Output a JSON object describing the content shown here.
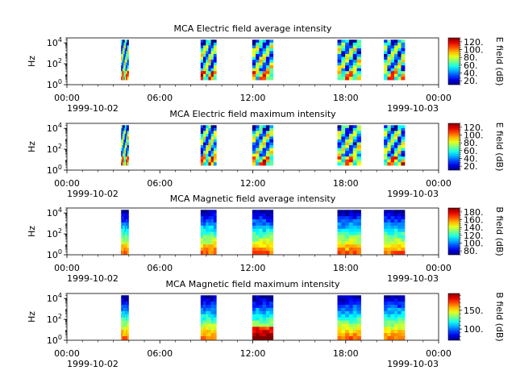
{
  "chart_data": [
    {
      "type": "heatmap",
      "title": "MCA  Electric field average intensity",
      "ylabel": "Hz",
      "colorbar_label": "E field (dB)",
      "colorbar_range": [
        10,
        130
      ],
      "colorbar_ticks": [
        "20.",
        "40.",
        "60.",
        "80.",
        "100.",
        "120."
      ],
      "y_scale": "log",
      "ylim": [
        1,
        30000
      ],
      "y_ticks": [
        {
          "base": "10",
          "exp": "0"
        },
        {
          "base": "10",
          "exp": "2"
        },
        {
          "base": "10",
          "exp": "4"
        }
      ],
      "x_ticks": [
        "00:00",
        "06:00",
        "12:00",
        "18:00",
        "00:00"
      ],
      "x_dates": [
        "1999-10-02",
        "1999-10-03"
      ],
      "field": "E",
      "segments": [
        {
          "start": "03:30",
          "end": "03:58"
        },
        {
          "start": "08:38",
          "end": "09:38"
        },
        {
          "start": "11:58",
          "end": "13:18"
        },
        {
          "start": "17:28",
          "end": "18:58"
        },
        {
          "start": "20:28",
          "end": "21:48"
        }
      ]
    },
    {
      "type": "heatmap",
      "title": "MCA  Electric field maximum intensity",
      "ylabel": "Hz",
      "colorbar_label": "E field (dB)",
      "colorbar_range": [
        10,
        130
      ],
      "colorbar_ticks": [
        "20.",
        "40.",
        "60.",
        "80.",
        "100.",
        "120."
      ],
      "y_scale": "log",
      "ylim": [
        1,
        30000
      ],
      "y_ticks": [
        {
          "base": "10",
          "exp": "0"
        },
        {
          "base": "10",
          "exp": "2"
        },
        {
          "base": "10",
          "exp": "4"
        }
      ],
      "x_ticks": [
        "00:00",
        "06:00",
        "12:00",
        "18:00",
        "00:00"
      ],
      "x_dates": [
        "1999-10-02",
        "1999-10-03"
      ],
      "field": "E",
      "segments": [
        {
          "start": "03:30",
          "end": "03:58"
        },
        {
          "start": "08:38",
          "end": "09:38"
        },
        {
          "start": "11:58",
          "end": "13:18"
        },
        {
          "start": "17:28",
          "end": "18:58"
        },
        {
          "start": "20:28",
          "end": "21:48"
        }
      ]
    },
    {
      "type": "heatmap",
      "title": "MCA  Magnetic field average intensity",
      "ylabel": "Hz",
      "colorbar_label": "B field (dB)",
      "colorbar_range": [
        70,
        190
      ],
      "colorbar_ticks": [
        "80.",
        "100.",
        "120.",
        "140.",
        "160.",
        "180."
      ],
      "y_scale": "log",
      "ylim": [
        1,
        30000
      ],
      "y_ticks": [
        {
          "base": "10",
          "exp": "0"
        },
        {
          "base": "10",
          "exp": "2"
        },
        {
          "base": "10",
          "exp": "4"
        }
      ],
      "x_ticks": [
        "00:00",
        "06:00",
        "12:00",
        "18:00",
        "00:00"
      ],
      "x_dates": [
        "1999-10-02",
        "1999-10-03"
      ],
      "field": "B",
      "segments": [
        {
          "start": "03:30",
          "end": "03:58"
        },
        {
          "start": "08:38",
          "end": "09:38"
        },
        {
          "start": "11:58",
          "end": "13:18"
        },
        {
          "start": "17:28",
          "end": "18:58"
        },
        {
          "start": "20:28",
          "end": "21:48"
        }
      ]
    },
    {
      "type": "heatmap",
      "title": "MCA  Magnetic field maximum intensity",
      "ylabel": "Hz",
      "colorbar_label": "B field (dB)",
      "colorbar_range": [
        70,
        195
      ],
      "colorbar_ticks": [
        "100.",
        "150."
      ],
      "y_scale": "log",
      "ylim": [
        1,
        30000
      ],
      "y_ticks": [
        {
          "base": "10",
          "exp": "0"
        },
        {
          "base": "10",
          "exp": "2"
        },
        {
          "base": "10",
          "exp": "4"
        }
      ],
      "x_ticks": [
        "00:00",
        "06:00",
        "12:00",
        "18:00",
        "00:00"
      ],
      "x_dates": [
        "1999-10-02",
        "1999-10-03"
      ],
      "field": "B",
      "segments": [
        {
          "start": "03:30",
          "end": "03:58"
        },
        {
          "start": "08:38",
          "end": "09:38"
        },
        {
          "start": "11:58",
          "end": "13:18"
        },
        {
          "start": "17:28",
          "end": "18:58"
        },
        {
          "start": "20:28",
          "end": "21:48"
        }
      ]
    }
  ]
}
